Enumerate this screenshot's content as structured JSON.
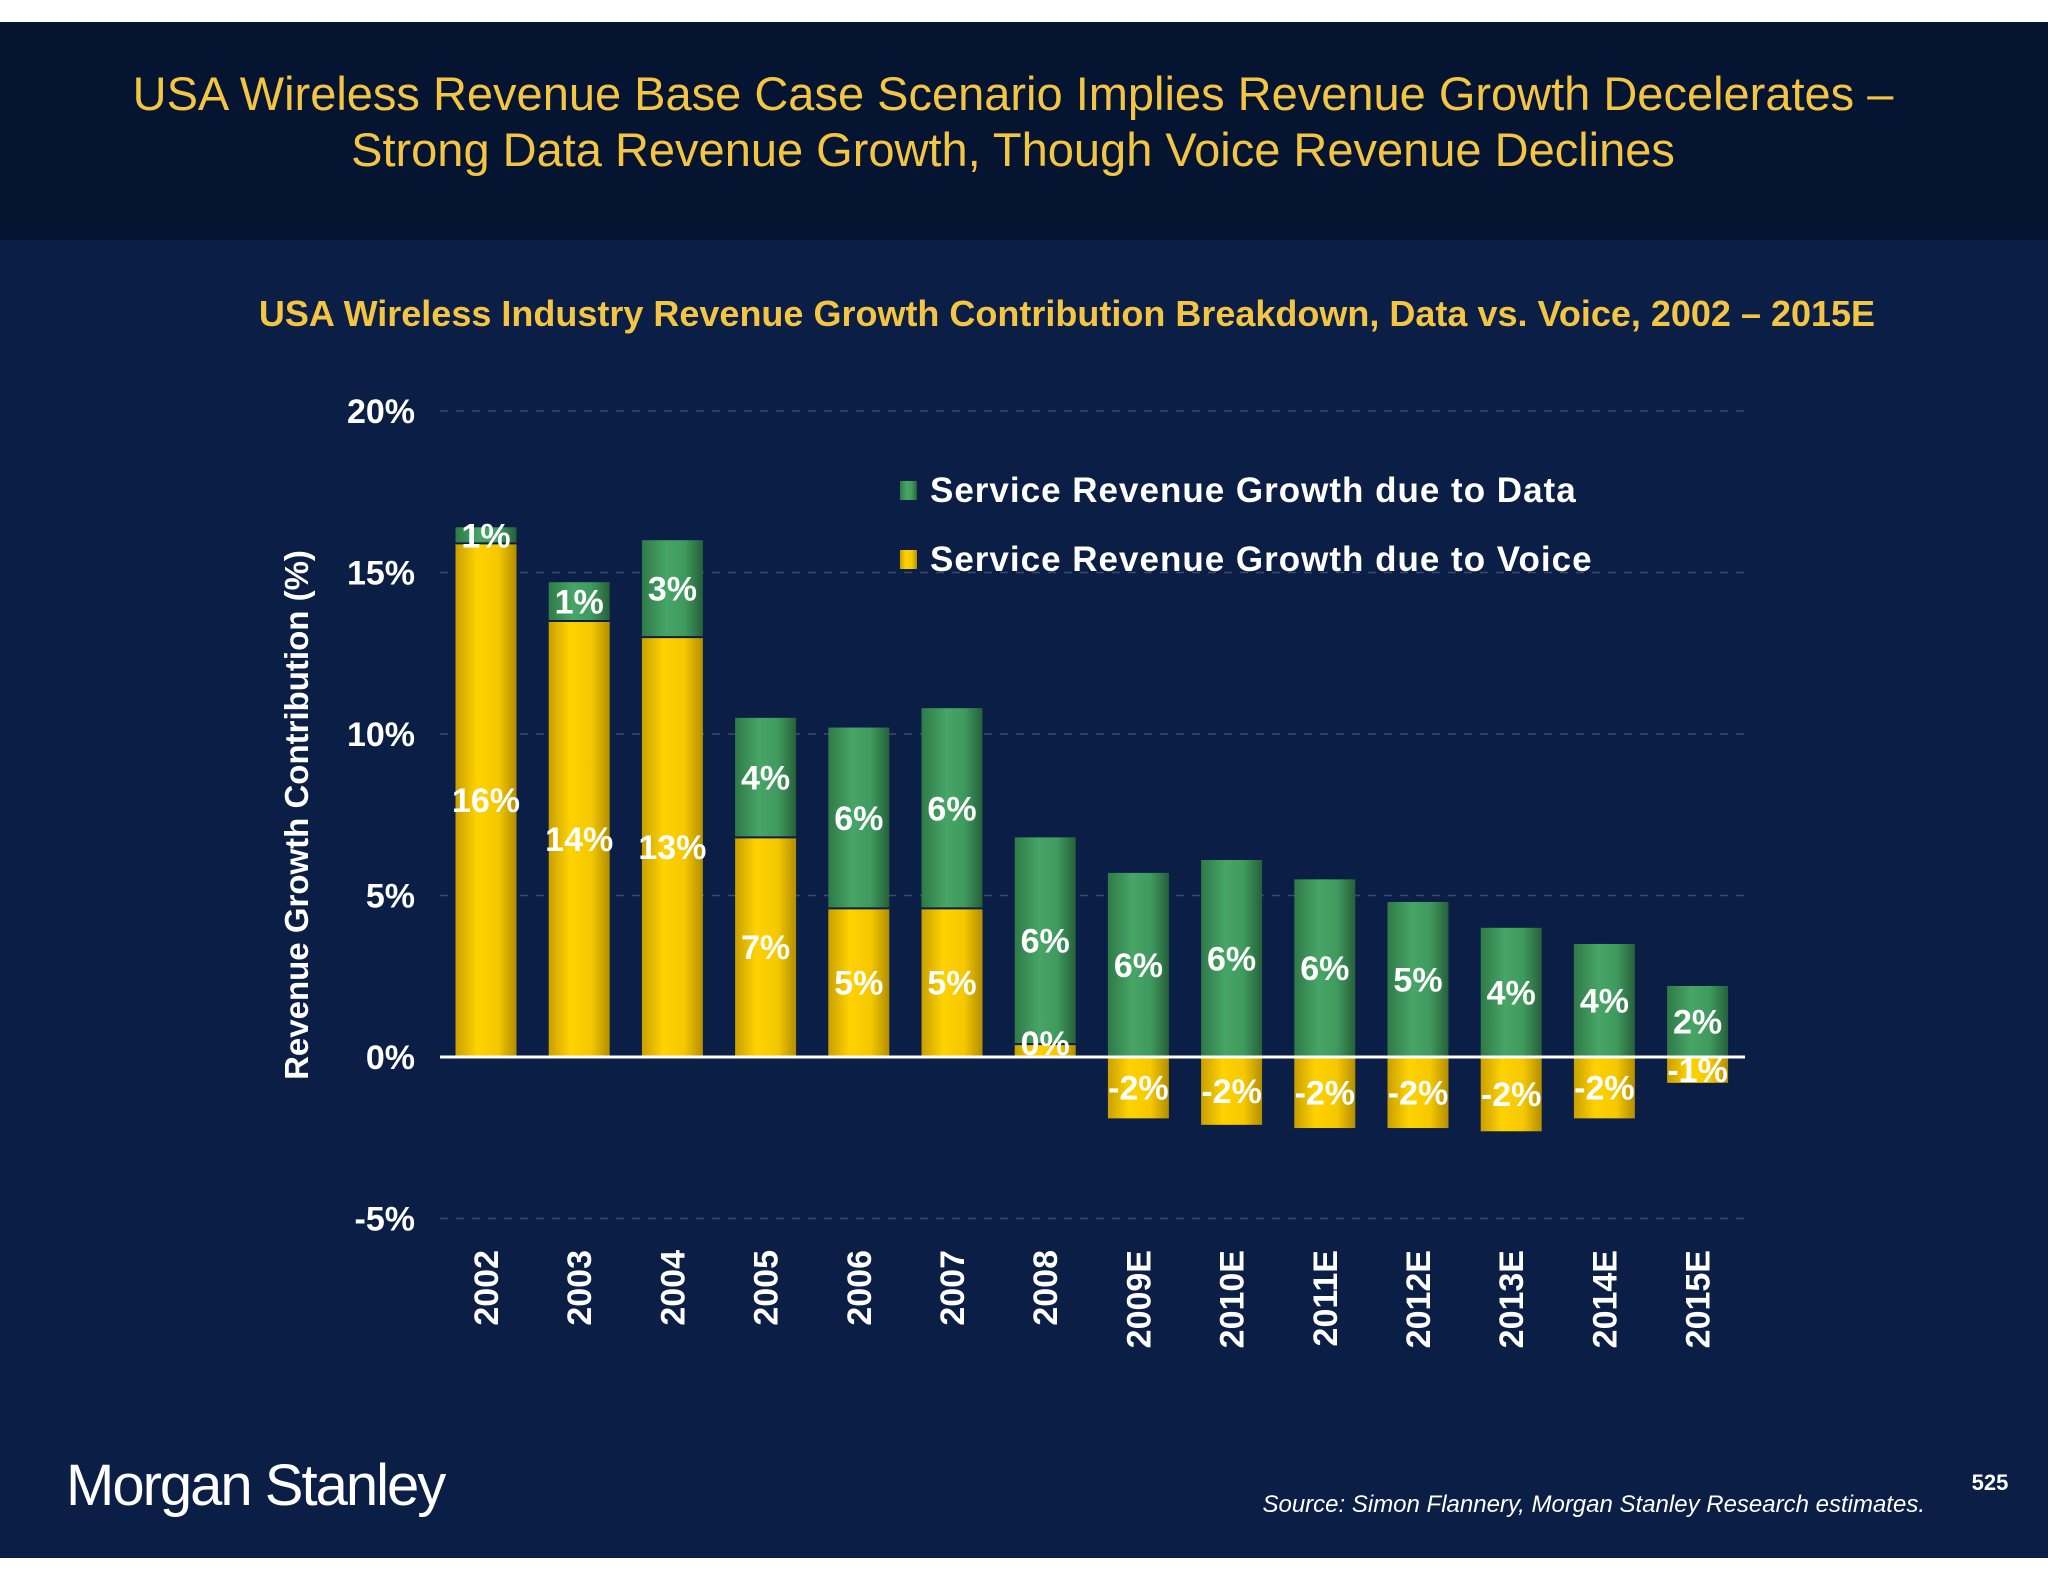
{
  "slide": {
    "title_line1": "USA Wireless Revenue Base Case Scenario Implies Revenue Growth Decelerates –",
    "title_line2": "Strong Data Revenue Growth, Though Voice Revenue Declines",
    "logo": "Morgan Stanley",
    "source": "Source: Simon Flannery, Morgan Stanley Research estimates.",
    "page_number": "525",
    "colors": {
      "header_bg": "#041431",
      "body_bg": "#0a1e46",
      "title": "#f4c542",
      "data": "#3f9a5e",
      "voice": "#f5c800"
    }
  },
  "chart_data": {
    "type": "bar",
    "stacked": true,
    "title": "USA Wireless Industry Revenue Growth Contribution Breakdown, Data vs. Voice, 2002 – 2015E",
    "xlabel": "",
    "ylabel": "Revenue Growth Contribution (%)",
    "ylim": [
      -5,
      20
    ],
    "yticks": [
      "-5%",
      "0%",
      "5%",
      "10%",
      "15%",
      "20%"
    ],
    "ytick_values": [
      -5,
      0,
      5,
      10,
      15,
      20
    ],
    "grid": true,
    "legend_position": "top-right",
    "categories": [
      "2002",
      "2003",
      "2004",
      "2005",
      "2006",
      "2007",
      "2008",
      "2009E",
      "2010E",
      "2011E",
      "2012E",
      "2013E",
      "2014E",
      "2015E"
    ],
    "series": [
      {
        "name": "Service Revenue Growth due to Voice",
        "values": [
          15.9,
          13.5,
          13.0,
          6.8,
          4.6,
          4.6,
          0.4,
          -1.9,
          -2.1,
          -2.2,
          -2.2,
          -2.3,
          -1.9,
          -0.8
        ],
        "labels": [
          "16%",
          "14%",
          "13%",
          "7%",
          "5%",
          "5%",
          "0%",
          "-2%",
          "-2%",
          "-2%",
          "-2%",
          "-2%",
          "-2%",
          "-1%"
        ]
      },
      {
        "name": "Service Revenue Growth due to Data",
        "values": [
          0.5,
          1.2,
          3.0,
          3.7,
          5.6,
          6.2,
          6.4,
          5.7,
          6.1,
          5.5,
          4.8,
          4.0,
          3.5,
          2.2
        ],
        "labels": [
          "1%",
          "1%",
          "3%",
          "4%",
          "6%",
          "6%",
          "6%",
          "6%",
          "6%",
          "6%",
          "5%",
          "4%",
          "4%",
          "2%"
        ]
      }
    ]
  }
}
